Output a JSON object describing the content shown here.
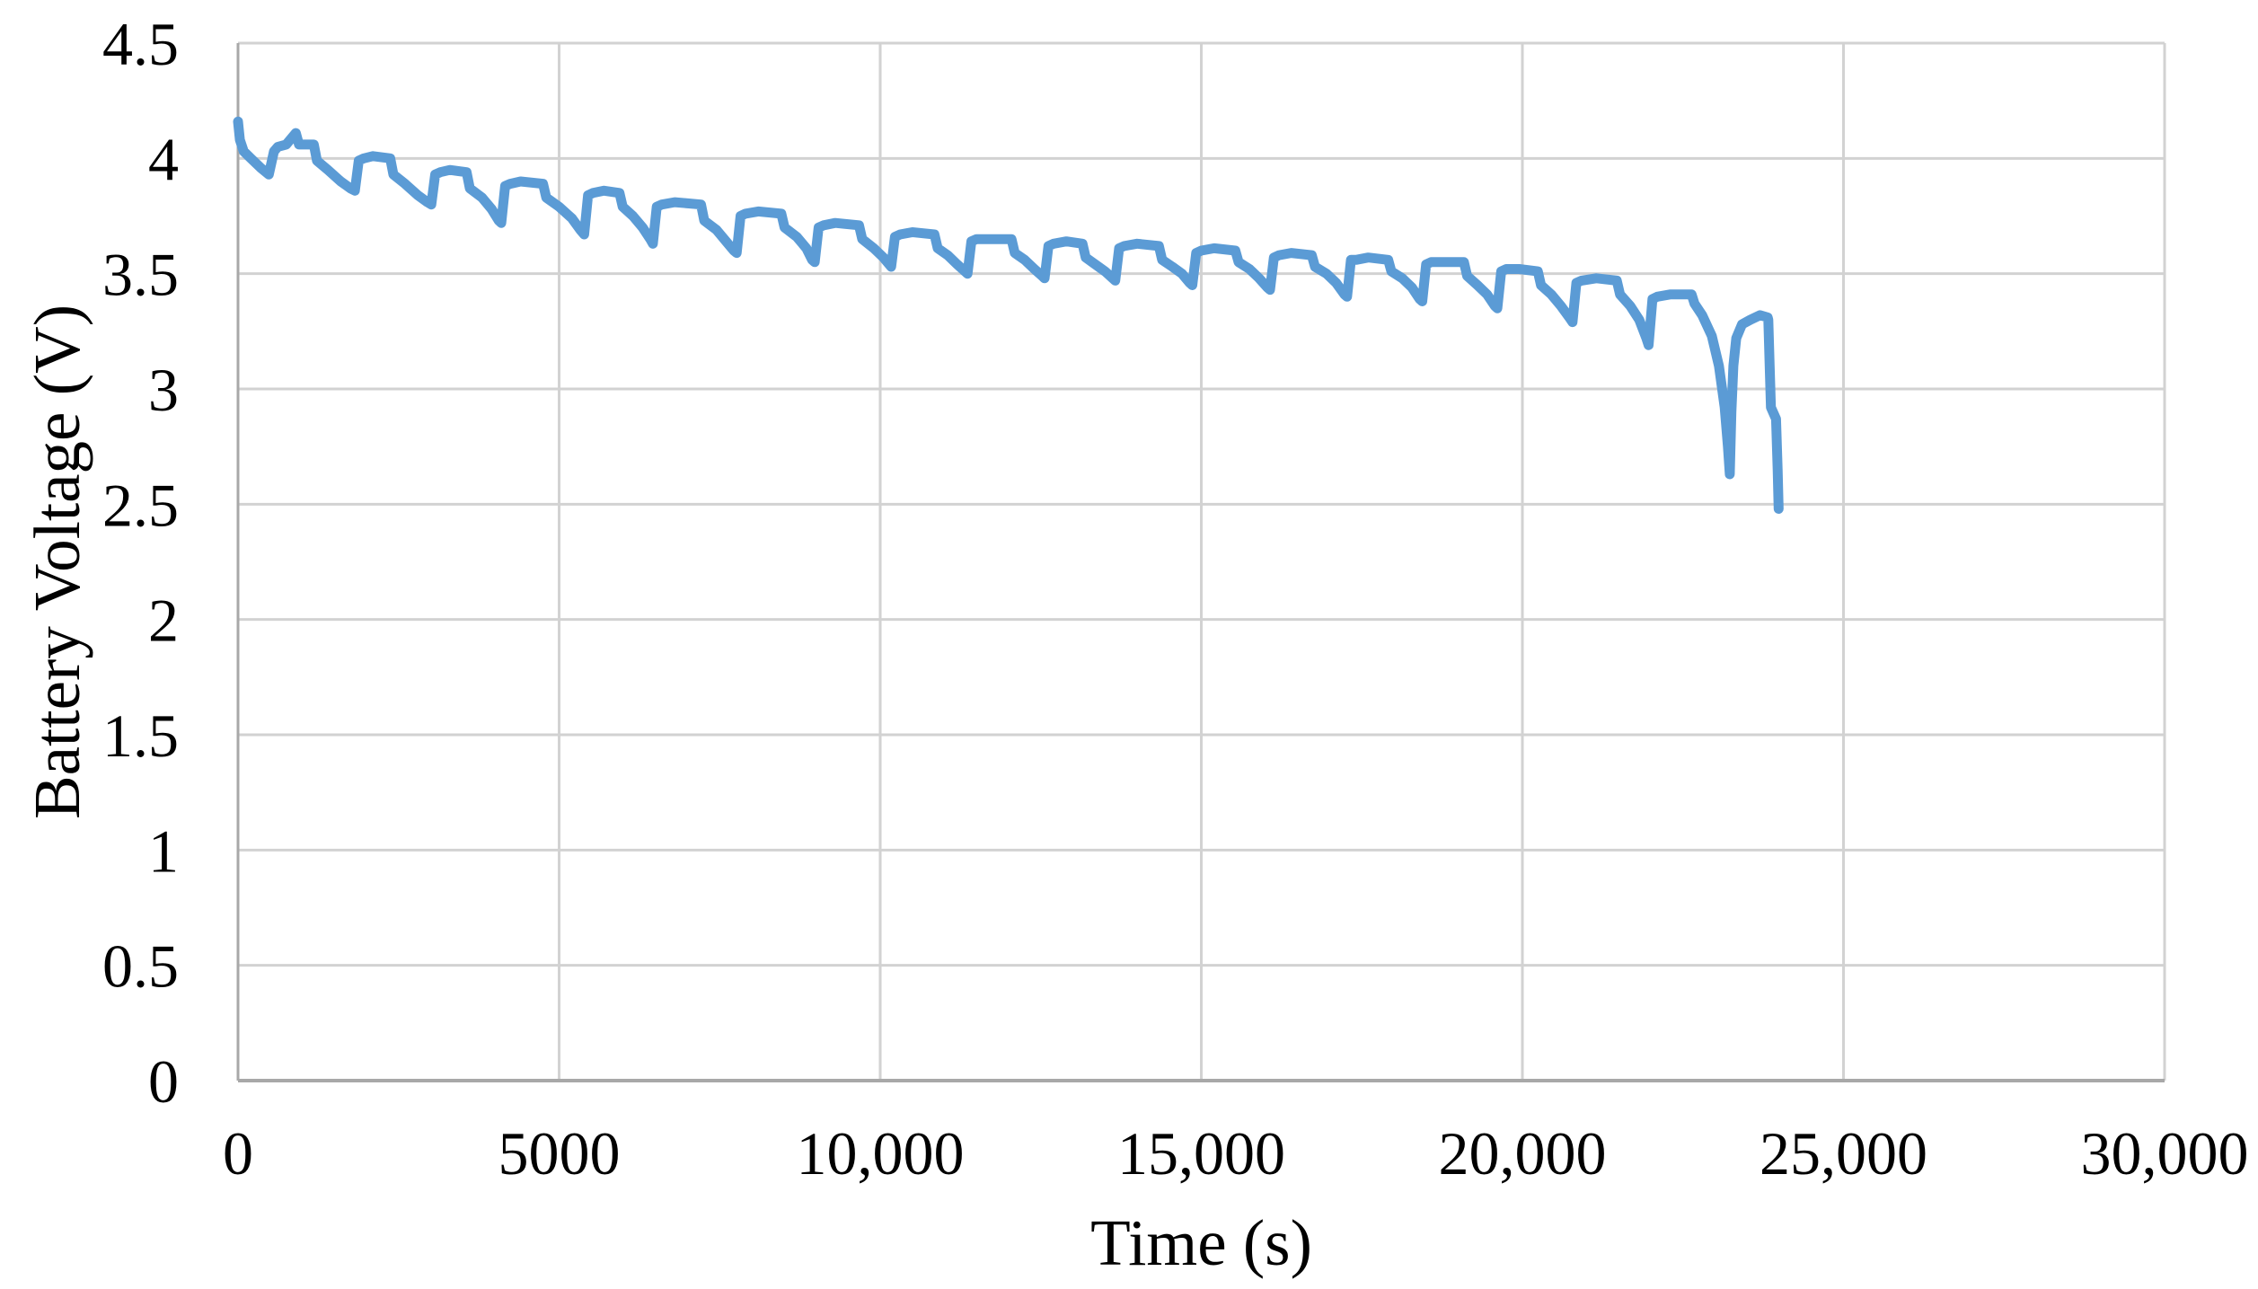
{
  "figure": {
    "background": "#ffffff",
    "series_color": "#5B9BD5",
    "gridline_color": "#D2D2D2",
    "axis_color": "#A8A8A8",
    "text_color": "#000000"
  },
  "chart_data": {
    "type": "line",
    "title": "",
    "xlabel": "Time (s)",
    "ylabel": "Battery Voltage (V)",
    "xlim": [
      0,
      30000
    ],
    "ylim": [
      0,
      4.5
    ],
    "grid": true,
    "legend_position": "none",
    "x_ticks": [
      0,
      5000,
      10000,
      15000,
      20000,
      25000,
      30000
    ],
    "x_tick_labels": [
      "0",
      "5000",
      "10,000",
      "15,000",
      "20,000",
      "25,000",
      "30,000"
    ],
    "y_ticks": [
      0,
      0.5,
      1,
      1.5,
      2,
      2.5,
      3,
      3.5,
      4,
      4.5
    ],
    "y_tick_labels": [
      "0",
      "0.5",
      "1",
      "1.5",
      "2",
      "2.5",
      "3",
      "3.5",
      "4",
      "4.5"
    ],
    "series": [
      {
        "name": "Battery Voltage",
        "color": "#5B9BD5",
        "stroke_width": 11,
        "points": [
          [
            0,
            4.16
          ],
          [
            30,
            4.08
          ],
          [
            90,
            4.03
          ],
          [
            200,
            4.0
          ],
          [
            350,
            3.96
          ],
          [
            480,
            3.93
          ],
          [
            560,
            4.03
          ],
          [
            620,
            4.05
          ],
          [
            750,
            4.06
          ],
          [
            900,
            4.11
          ],
          [
            950,
            4.06
          ],
          [
            1180,
            4.06
          ],
          [
            1230,
            3.99
          ],
          [
            1400,
            3.95
          ],
          [
            1600,
            3.9
          ],
          [
            1750,
            3.87
          ],
          [
            1820,
            3.86
          ],
          [
            1880,
            3.99
          ],
          [
            1960,
            4.0
          ],
          [
            2100,
            4.01
          ],
          [
            2370,
            4.0
          ],
          [
            2420,
            3.93
          ],
          [
            2600,
            3.89
          ],
          [
            2800,
            3.84
          ],
          [
            2950,
            3.81
          ],
          [
            3010,
            3.8
          ],
          [
            3070,
            3.93
          ],
          [
            3150,
            3.94
          ],
          [
            3300,
            3.95
          ],
          [
            3560,
            3.94
          ],
          [
            3610,
            3.87
          ],
          [
            3800,
            3.83
          ],
          [
            3950,
            3.78
          ],
          [
            4060,
            3.73
          ],
          [
            4100,
            3.72
          ],
          [
            4160,
            3.88
          ],
          [
            4240,
            3.89
          ],
          [
            4400,
            3.9
          ],
          [
            4750,
            3.89
          ],
          [
            4800,
            3.83
          ],
          [
            5000,
            3.79
          ],
          [
            5200,
            3.74
          ],
          [
            5330,
            3.69
          ],
          [
            5390,
            3.67
          ],
          [
            5450,
            3.84
          ],
          [
            5530,
            3.85
          ],
          [
            5700,
            3.86
          ],
          [
            5940,
            3.85
          ],
          [
            5990,
            3.79
          ],
          [
            6150,
            3.75
          ],
          [
            6300,
            3.7
          ],
          [
            6420,
            3.65
          ],
          [
            6460,
            3.63
          ],
          [
            6520,
            3.79
          ],
          [
            6600,
            3.8
          ],
          [
            6800,
            3.81
          ],
          [
            7210,
            3.8
          ],
          [
            7260,
            3.73
          ],
          [
            7450,
            3.69
          ],
          [
            7600,
            3.64
          ],
          [
            7720,
            3.6
          ],
          [
            7765,
            3.59
          ],
          [
            7825,
            3.75
          ],
          [
            7900,
            3.76
          ],
          [
            8100,
            3.77
          ],
          [
            8460,
            3.76
          ],
          [
            8510,
            3.7
          ],
          [
            8700,
            3.66
          ],
          [
            8850,
            3.61
          ],
          [
            8940,
            3.56
          ],
          [
            8980,
            3.55
          ],
          [
            9040,
            3.7
          ],
          [
            9120,
            3.71
          ],
          [
            9300,
            3.72
          ],
          [
            9670,
            3.71
          ],
          [
            9720,
            3.65
          ],
          [
            9900,
            3.61
          ],
          [
            10050,
            3.57
          ],
          [
            10140,
            3.54
          ],
          [
            10170,
            3.53
          ],
          [
            10230,
            3.66
          ],
          [
            10310,
            3.67
          ],
          [
            10500,
            3.68
          ],
          [
            10845,
            3.67
          ],
          [
            10895,
            3.61
          ],
          [
            11050,
            3.58
          ],
          [
            11200,
            3.54
          ],
          [
            11320,
            3.51
          ],
          [
            11360,
            3.5
          ],
          [
            11420,
            3.64
          ],
          [
            11500,
            3.65
          ],
          [
            11700,
            3.65
          ],
          [
            12045,
            3.65
          ],
          [
            12095,
            3.59
          ],
          [
            12250,
            3.56
          ],
          [
            12400,
            3.52
          ],
          [
            12520,
            3.49
          ],
          [
            12560,
            3.48
          ],
          [
            12620,
            3.62
          ],
          [
            12700,
            3.63
          ],
          [
            12900,
            3.64
          ],
          [
            13150,
            3.63
          ],
          [
            13200,
            3.57
          ],
          [
            13350,
            3.54
          ],
          [
            13500,
            3.51
          ],
          [
            13620,
            3.48
          ],
          [
            13660,
            3.47
          ],
          [
            13720,
            3.61
          ],
          [
            13800,
            3.62
          ],
          [
            14000,
            3.63
          ],
          [
            14340,
            3.62
          ],
          [
            14390,
            3.56
          ],
          [
            14550,
            3.53
          ],
          [
            14700,
            3.5
          ],
          [
            14820,
            3.46
          ],
          [
            14860,
            3.45
          ],
          [
            14920,
            3.59
          ],
          [
            15000,
            3.6
          ],
          [
            15200,
            3.61
          ],
          [
            15530,
            3.6
          ],
          [
            15580,
            3.55
          ],
          [
            15750,
            3.52
          ],
          [
            15900,
            3.48
          ],
          [
            16030,
            3.44
          ],
          [
            16070,
            3.43
          ],
          [
            16130,
            3.57
          ],
          [
            16210,
            3.58
          ],
          [
            16400,
            3.59
          ],
          [
            16720,
            3.58
          ],
          [
            16770,
            3.53
          ],
          [
            16950,
            3.5
          ],
          [
            17100,
            3.46
          ],
          [
            17230,
            3.41
          ],
          [
            17270,
            3.4
          ],
          [
            17330,
            3.56
          ],
          [
            17410,
            3.56
          ],
          [
            17600,
            3.57
          ],
          [
            17910,
            3.56
          ],
          [
            17960,
            3.51
          ],
          [
            18130,
            3.48
          ],
          [
            18280,
            3.44
          ],
          [
            18400,
            3.39
          ],
          [
            18440,
            3.38
          ],
          [
            18500,
            3.54
          ],
          [
            18580,
            3.55
          ],
          [
            18800,
            3.55
          ],
          [
            19090,
            3.55
          ],
          [
            19140,
            3.49
          ],
          [
            19300,
            3.45
          ],
          [
            19450,
            3.41
          ],
          [
            19570,
            3.36
          ],
          [
            19610,
            3.35
          ],
          [
            19670,
            3.51
          ],
          [
            19750,
            3.52
          ],
          [
            19950,
            3.52
          ],
          [
            20240,
            3.51
          ],
          [
            20290,
            3.45
          ],
          [
            20450,
            3.41
          ],
          [
            20600,
            3.36
          ],
          [
            20730,
            3.31
          ],
          [
            20780,
            3.29
          ],
          [
            20840,
            3.46
          ],
          [
            20920,
            3.47
          ],
          [
            21150,
            3.48
          ],
          [
            21470,
            3.47
          ],
          [
            21520,
            3.41
          ],
          [
            21680,
            3.36
          ],
          [
            21820,
            3.3
          ],
          [
            21930,
            3.22
          ],
          [
            21965,
            3.19
          ],
          [
            22025,
            3.39
          ],
          [
            22100,
            3.4
          ],
          [
            22300,
            3.41
          ],
          [
            22635,
            3.41
          ],
          [
            22680,
            3.37
          ],
          [
            22800,
            3.32
          ],
          [
            22950,
            3.23
          ],
          [
            23060,
            3.1
          ],
          [
            23150,
            2.92
          ],
          [
            23200,
            2.75
          ],
          [
            23230,
            2.63
          ],
          [
            23255,
            2.9
          ],
          [
            23285,
            3.1
          ],
          [
            23330,
            3.22
          ],
          [
            23420,
            3.28
          ],
          [
            23550,
            3.3
          ],
          [
            23700,
            3.32
          ],
          [
            23820,
            3.31
          ],
          [
            23830,
            3.3
          ],
          [
            23850,
            3.1
          ],
          [
            23870,
            2.92
          ],
          [
            23950,
            2.87
          ],
          [
            23975,
            2.65
          ],
          [
            23990,
            2.48
          ]
        ]
      }
    ]
  }
}
